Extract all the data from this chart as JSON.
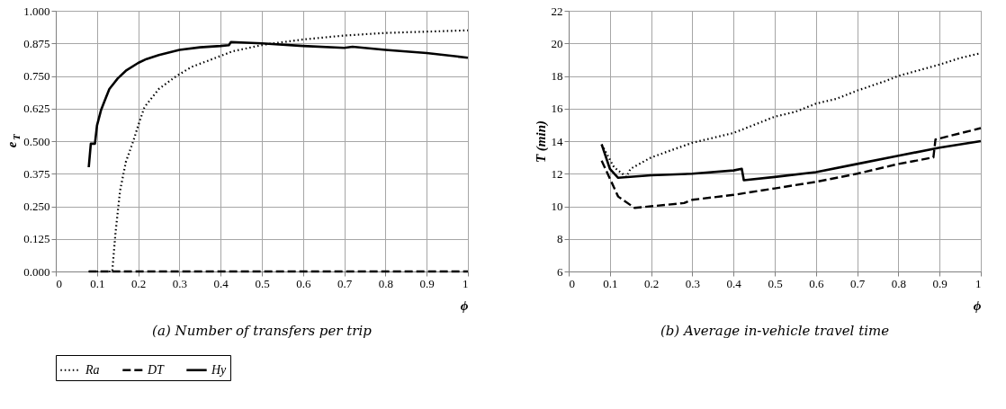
{
  "chart_data": [
    {
      "type": "line",
      "title": "(a) Number of transfers per trip",
      "xlabel": "ϕ",
      "ylabel": "e$_{T}$",
      "xlim": [
        0,
        1
      ],
      "ylim": [
        0,
        1
      ],
      "xticks": [
        0,
        0.1,
        0.2,
        0.3,
        0.4,
        0.5,
        0.6,
        0.7,
        0.8,
        0.9,
        1
      ],
      "yticks": [
        {
          "value": 0,
          "label": "0.000"
        },
        {
          "value": 0.125,
          "label": "0.125"
        },
        {
          "value": 0.25,
          "label": "0.250"
        },
        {
          "value": 0.375,
          "label": "0.375"
        },
        {
          "value": 0.5,
          "label": "0.500"
        },
        {
          "value": 0.625,
          "label": "0.625"
        },
        {
          "value": 0.75,
          "label": "0.750"
        },
        {
          "value": 0.875,
          "label": "0.875"
        },
        {
          "value": 1,
          "label": "1.000"
        }
      ],
      "grid": true,
      "legend": "bottom",
      "series": [
        {
          "name": "Ra",
          "color": "#000000",
          "line_style": "dotted",
          "x": [
            0.08,
            0.137,
            0.145,
            0.156,
            0.17,
            0.188,
            0.2,
            0.215,
            0.25,
            0.293,
            0.33,
            0.372,
            0.43,
            0.505,
            0.6,
            0.7,
            0.8,
            0.9,
            1.0
          ],
          "values": [
            0,
            0,
            0.15,
            0.31,
            0.42,
            0.5,
            0.56,
            0.63,
            0.7,
            0.75,
            0.785,
            0.81,
            0.845,
            0.87,
            0.89,
            0.905,
            0.915,
            0.92,
            0.925
          ]
        },
        {
          "name": "DT",
          "color": "#000000",
          "line_style": "dashed",
          "x": [
            0.08,
            1.0
          ],
          "values": [
            0,
            0
          ]
        },
        {
          "name": "Hy",
          "color": "#000000",
          "line_style": "solid",
          "x": [
            0.08,
            0.085,
            0.095,
            0.1,
            0.11,
            0.12,
            0.13,
            0.14,
            0.15,
            0.17,
            0.2,
            0.22,
            0.25,
            0.3,
            0.35,
            0.4,
            0.42,
            0.425,
            0.5,
            0.6,
            0.7,
            0.72,
            0.8,
            0.9,
            1.0
          ],
          "values": [
            0.4,
            0.49,
            0.49,
            0.56,
            0.62,
            0.66,
            0.7,
            0.72,
            0.74,
            0.77,
            0.8,
            0.815,
            0.83,
            0.85,
            0.86,
            0.865,
            0.868,
            0.88,
            0.875,
            0.865,
            0.858,
            0.862,
            0.85,
            0.838,
            0.82
          ]
        }
      ]
    },
    {
      "type": "line",
      "title": "(b) Average in-vehicle travel time",
      "xlabel": "ϕ",
      "ylabel": "T (min)",
      "xlim": [
        0,
        1
      ],
      "ylim": [
        6,
        22
      ],
      "xticks": [
        0,
        0.1,
        0.2,
        0.3,
        0.4,
        0.5,
        0.6,
        0.7,
        0.8,
        0.9,
        1
      ],
      "yticks": [
        6,
        8,
        10,
        12,
        14,
        16,
        18,
        20,
        22
      ],
      "grid": true,
      "legend": "bottom",
      "series": [
        {
          "name": "Ra",
          "color": "#000000",
          "line_style": "dotted",
          "x": [
            0.08,
            0.11,
            0.14,
            0.15,
            0.2,
            0.3,
            0.4,
            0.45,
            0.5,
            0.55,
            0.6,
            0.65,
            0.7,
            0.77,
            0.8,
            0.9,
            0.95,
            1.0
          ],
          "values": [
            13.8,
            12.4,
            11.8,
            12.3,
            13.0,
            13.9,
            14.5,
            15.0,
            15.5,
            15.8,
            16.3,
            16.6,
            17.1,
            17.7,
            18.0,
            18.7,
            19.1,
            19.4
          ]
        },
        {
          "name": "DT",
          "color": "#000000",
          "line_style": "dashed",
          "x": [
            0.08,
            0.1,
            0.12,
            0.16,
            0.2,
            0.28,
            0.3,
            0.4,
            0.5,
            0.6,
            0.7,
            0.8,
            0.885,
            0.89,
            1.0
          ],
          "values": [
            12.8,
            11.7,
            10.6,
            9.9,
            10.0,
            10.2,
            10.4,
            10.7,
            11.1,
            11.5,
            12.0,
            12.6,
            13.0,
            14.1,
            14.8
          ]
        },
        {
          "name": "Hy",
          "color": "#000000",
          "line_style": "solid",
          "x": [
            0.08,
            0.1,
            0.12,
            0.2,
            0.3,
            0.4,
            0.42,
            0.425,
            0.5,
            0.6,
            0.7,
            0.8,
            0.9,
            1.0
          ],
          "values": [
            13.8,
            12.3,
            11.75,
            11.9,
            12.0,
            12.2,
            12.3,
            11.6,
            11.8,
            12.1,
            12.6,
            13.1,
            13.6,
            14.0
          ]
        }
      ]
    }
  ]
}
